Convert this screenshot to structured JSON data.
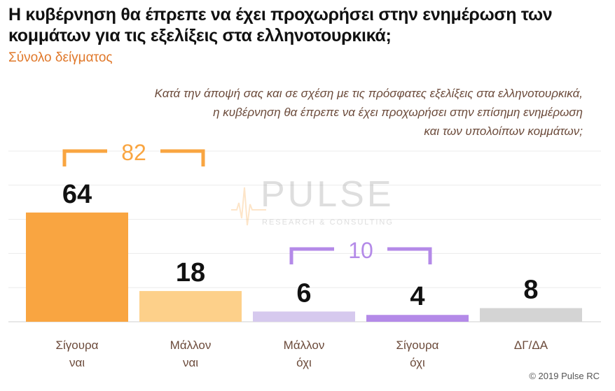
{
  "header": {
    "title": "Η κυβέρνηση θα έπρεπε να έχει προχωρήσει στην  ενημέρωση των κομμάτων για τις εξελίξεις στα ελληνοτουρκικά;",
    "subtitle": "Σύνολο δείγματος"
  },
  "question": {
    "line1": "Κατά την άποψή σας και σε σχέση με τις πρόσφατες εξελίξεις στα ελληνοτουρκικά,",
    "line2": "η κυβέρνηση θα έπρεπε να έχει προχωρήσει στην επίσημη ενημέρωση",
    "line3": "και των υπολοίπων κομμάτων;"
  },
  "watermark": {
    "name": "PULSE",
    "tagline": "RESEARCH & CONSULTING"
  },
  "footer": {
    "copyright": "© 2019 Pulse RC"
  },
  "chart_data": {
    "type": "bar",
    "categories": [
      [
        "Σίγουρα",
        "ναι"
      ],
      [
        "Μάλλον",
        "ναι"
      ],
      [
        "Μάλλον",
        "όχι"
      ],
      [
        "Σίγουρα",
        "όχι"
      ],
      [
        "ΔΓ/ΔΑ"
      ]
    ],
    "values": [
      64,
      18,
      6,
      4,
      8
    ],
    "colors": [
      "#f9a541",
      "#fdd08a",
      "#d6c9ee",
      "#b48ae8",
      "#d4d4d4"
    ],
    "ylim": [
      0,
      100
    ],
    "grid": true,
    "brackets": [
      {
        "label": "82",
        "from": 0,
        "to": 1,
        "color": "#f9a541"
      },
      {
        "label": "10",
        "from": 2,
        "to": 3,
        "color": "#b48ae8"
      }
    ]
  }
}
